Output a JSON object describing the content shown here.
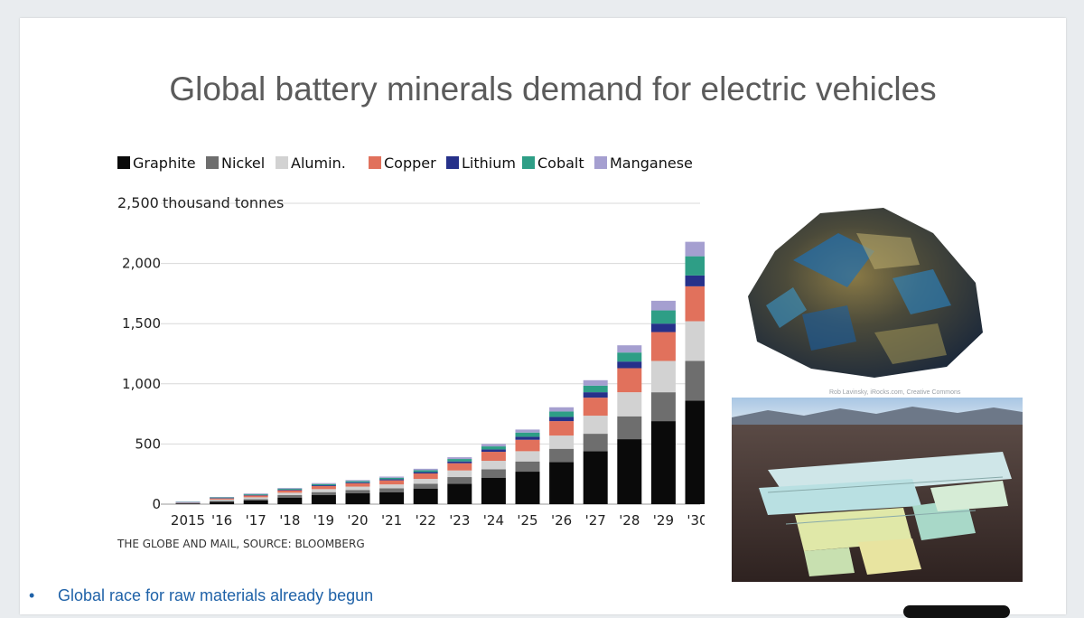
{
  "slide": {
    "title": "Global battery minerals demand for electric vehicles",
    "bullet": "Global race for raw materials already begun",
    "bullet_glyph": "•",
    "image_credit": "Rob Lavinsky, iRocks.com, Creative Commons"
  },
  "icons": [
    "mineral-rock-photo",
    "salt-flats-photo",
    "bullet-icon"
  ],
  "chart_data": {
    "type": "bar",
    "stacked": true,
    "ylabel": "thousand tonnes",
    "ytop_label": "2,500",
    "yticks": [
      "0",
      "500",
      "1,000",
      "1,500",
      "2,000"
    ],
    "ylim": [
      0,
      2500
    ],
    "grid": true,
    "legend_position": "top",
    "source": "THE GLOBE AND MAIL, SOURCE: BLOOMBERG",
    "categories": [
      "2015",
      "'16",
      "'17",
      "'18",
      "'19",
      "'20",
      "'21",
      "'22",
      "'23",
      "'24",
      "'25",
      "'26",
      "'27",
      "'28",
      "'29",
      "'30"
    ],
    "series": [
      {
        "name": "Graphite",
        "color": "#0a0a0a",
        "values": [
          5,
          20,
          30,
          55,
          75,
          90,
          100,
          130,
          170,
          220,
          270,
          350,
          440,
          540,
          690,
          860
        ]
      },
      {
        "name": "Nickel",
        "color": "#6e6e6e",
        "values": [
          3,
          8,
          12,
          20,
          25,
          28,
          32,
          40,
          55,
          70,
          85,
          110,
          145,
          190,
          240,
          330
        ]
      },
      {
        "name": "Alumin.",
        "color": "#d2d2d2",
        "values": [
          4,
          10,
          15,
          20,
          25,
          28,
          32,
          40,
          55,
          70,
          85,
          110,
          150,
          200,
          260,
          330
        ]
      },
      {
        "name": "Copper",
        "color": "#e1715c",
        "values": [
          4,
          10,
          15,
          20,
          25,
          28,
          34,
          45,
          60,
          75,
          95,
          120,
          150,
          200,
          240,
          290
        ]
      },
      {
        "name": "Lithium",
        "color": "#26318a",
        "values": [
          1,
          3,
          5,
          6,
          7,
          8,
          9,
          12,
          15,
          20,
          25,
          35,
          45,
          55,
          70,
          90
        ]
      },
      {
        "name": "Cobalt",
        "color": "#2e9e86",
        "values": [
          2,
          5,
          7,
          8,
          10,
          10,
          12,
          15,
          20,
          25,
          35,
          45,
          55,
          75,
          110,
          160
        ]
      },
      {
        "name": "Manganese",
        "color": "#a59fd0",
        "values": [
          2,
          4,
          5,
          6,
          8,
          8,
          10,
          12,
          15,
          20,
          25,
          35,
          45,
          60,
          80,
          120
        ]
      }
    ]
  }
}
